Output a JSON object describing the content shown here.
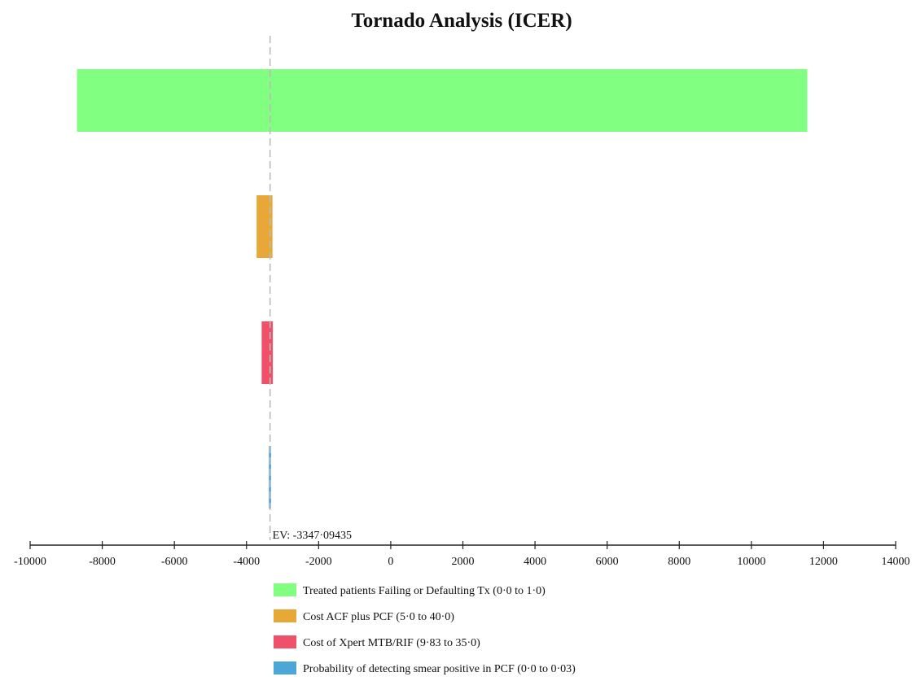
{
  "chart_data": {
    "type": "bar",
    "orientation": "horizontal",
    "variant": "tornado",
    "title": "Tornado Analysis (ICER)",
    "xlabel": "",
    "ylabel": "",
    "xlim": [
      -10000,
      14000
    ],
    "x_ticks": [
      -10000,
      -8000,
      -6000,
      -4000,
      -2000,
      0,
      2000,
      4000,
      6000,
      8000,
      10000,
      12000,
      14000
    ],
    "grid": false,
    "legend_position": "bottom",
    "expected_value": {
      "value": -3347.09435,
      "label": "EV: -3347·09435"
    },
    "series": [
      {
        "name": "Treated patients Failing or Defaulting Tx (0·0 to 1·0)",
        "low": -8700,
        "high": 11550,
        "color": "#80ff80"
      },
      {
        "name": "Cost ACF plus PCF (5·0 to 40·0)",
        "low": -3720,
        "high": -3280,
        "color": "#e8a838"
      },
      {
        "name": "Cost of Xpert MTB/RIF (9·83 to 35·0)",
        "low": -3580,
        "high": -3270,
        "color": "#f0506a"
      },
      {
        "name": "Probability of detecting smear positive in PCF (0·0 to 0·03)",
        "low": -3380,
        "high": -3320,
        "color": "#4da6d8"
      }
    ]
  }
}
